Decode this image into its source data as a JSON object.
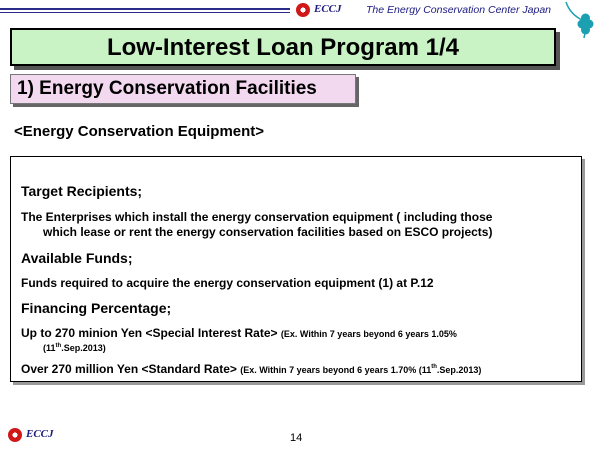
{
  "header": {
    "brand": "ECCJ",
    "organization": "The Energy Conservation Center Japan"
  },
  "title": "Low-Interest Loan Program  1/4",
  "subtitle": "1) Energy Conservation Facilities",
  "section_heading": "<Energy Conservation Equipment>",
  "content": {
    "target_label": "Target  Recipients;",
    "target_line1": "The Enterprises which install the energy conservation equipment ( including those",
    "target_line2": "which lease or rent the energy conservation facilities based on ESCO projects)",
    "funds_label": "Available Funds;",
    "funds_text": "Funds required to acquire the energy conservation equipment (1) at P.12",
    "financing_label": "Financing Percentage;",
    "special_main": "Up to 270 minion Yen  <Special Interest Rate>",
    "special_note": "(Ex. Within 7 years beyond  6 years 1.05%",
    "special_date_day": "11",
    "special_date_sup": "th",
    "special_date_rest": ".Sep.2013)",
    "standard_main": "Over  270 million Yen  <Standard Rate>",
    "standard_note": "(Ex. Within 7 years beyond  6 years 1.70% (",
    "standard_date_day": "11",
    "standard_date_sup": "th",
    "standard_date_rest": ".Sep.2013)"
  },
  "footer": {
    "brand": "ECCJ",
    "page_number": "14"
  },
  "colors": {
    "title_bg": "#c9f3c4",
    "subtitle_bg": "#f3d9ef",
    "brand_blue": "#1a1a80",
    "logo_red": "#d01818",
    "clover_teal": "#1aa0b0"
  }
}
